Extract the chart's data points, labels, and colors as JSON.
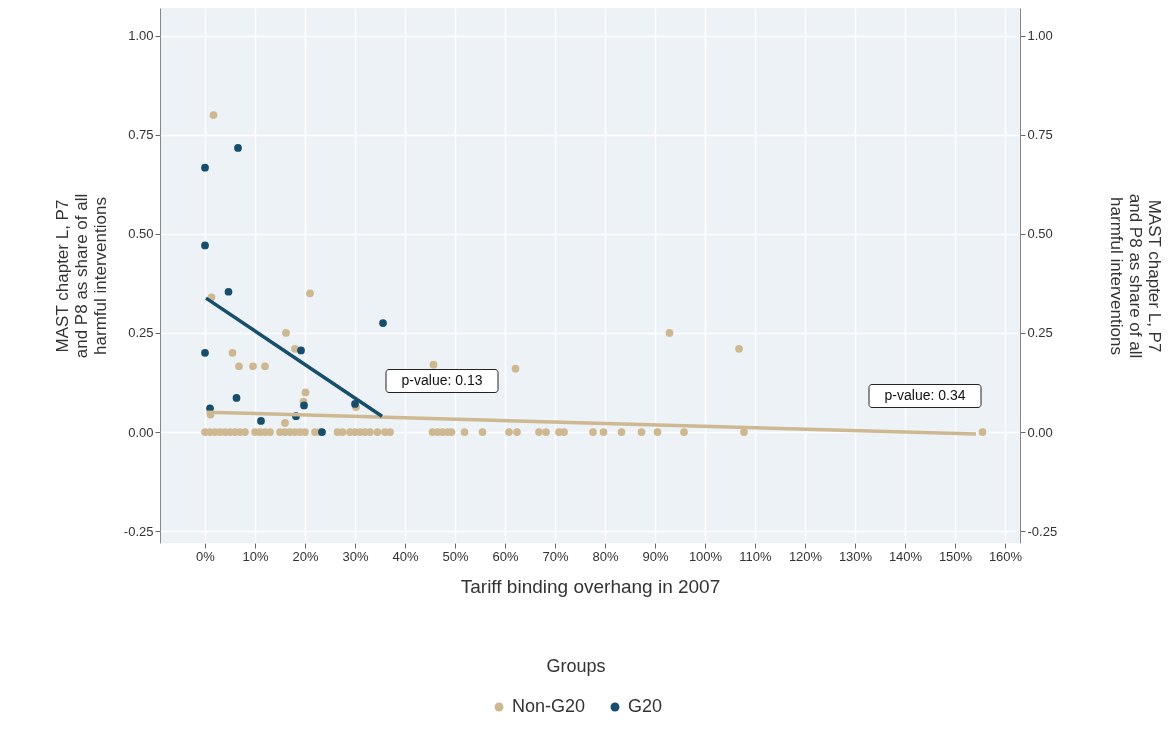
{
  "chart_data": {
    "type": "scatter",
    "xlabel": "Tariff binding overhang in 2007",
    "ylabel": "MAST chapter L, P7\nand P8 as share of all\nharmful interventions",
    "y2label": "MAST chapter L, P7\nand P8 as share of all\nharmful interventions",
    "legend_title": "Groups",
    "legend": "bottom",
    "grid": true,
    "xlim": [
      -9,
      163
    ],
    "ylim": [
      -0.28,
      1.07
    ],
    "y2lim": [
      -0.28,
      1.07
    ],
    "xticks": [
      {
        "value": 0,
        "label": "0%"
      },
      {
        "value": 10,
        "label": "10%"
      },
      {
        "value": 20,
        "label": "20%"
      },
      {
        "value": 30,
        "label": "30%"
      },
      {
        "value": 40,
        "label": "40%"
      },
      {
        "value": 50,
        "label": "50%"
      },
      {
        "value": 60,
        "label": "60%"
      },
      {
        "value": 70,
        "label": "70%"
      },
      {
        "value": 80,
        "label": "80%"
      },
      {
        "value": 90,
        "label": "90%"
      },
      {
        "value": 100,
        "label": "100%"
      },
      {
        "value": 110,
        "label": "110%"
      },
      {
        "value": 120,
        "label": "120%"
      },
      {
        "value": 130,
        "label": "130%"
      },
      {
        "value": 140,
        "label": "140%"
      },
      {
        "value": 150,
        "label": "150%"
      },
      {
        "value": 160,
        "label": "160%"
      }
    ],
    "yticks": [
      {
        "value": -0.25,
        "label": "-0.25"
      },
      {
        "value": 0,
        "label": "0.00"
      },
      {
        "value": 0.25,
        "label": "0.25"
      },
      {
        "value": 0.5,
        "label": "0.50"
      },
      {
        "value": 0.75,
        "label": "0.75"
      },
      {
        "value": 1,
        "label": "1.00"
      }
    ],
    "y2ticks": [
      {
        "value": -0.25,
        "label": "-0.25"
      },
      {
        "value": 0,
        "label": "0.00"
      },
      {
        "value": 0.25,
        "label": "0.25"
      },
      {
        "value": 0.5,
        "label": "0.50"
      },
      {
        "value": 0.75,
        "label": "0.75"
      },
      {
        "value": 1,
        "label": "1.00"
      }
    ],
    "series": [
      {
        "name": "Non-G20",
        "color": "#cdb891",
        "marker": "circle",
        "x": [
          1.7,
          1.3,
          21,
          16.2,
          5.5,
          18,
          6.8,
          9.6,
          12,
          20.1,
          19.7,
          30.2,
          16,
          1.1,
          45.7,
          62.1,
          92.9,
          106.8,
          0,
          1,
          2,
          3,
          4,
          5,
          6,
          7,
          8,
          10,
          11,
          12,
          13,
          15,
          16,
          17,
          18,
          19,
          20,
          22,
          23,
          26.5,
          27.5,
          29,
          30,
          31,
          32,
          33,
          34.5,
          36,
          37,
          45.5,
          46.5,
          47.5,
          48.5,
          49.3,
          51.9,
          55.5,
          60.8,
          62.4,
          66.8,
          68.2,
          70.8,
          71.8,
          77.6,
          79.7,
          83.3,
          87.3,
          90.5,
          95.8,
          107.8,
          155.5
        ],
        "values": [
          0.8,
          0.34,
          0.35,
          0.25,
          0.2,
          0.21,
          0.166,
          0.166,
          0.166,
          0.1,
          0.077,
          0.063,
          0.023,
          0.044,
          0.17,
          0.16,
          0.25,
          0.21,
          0,
          0,
          0,
          0,
          0,
          0,
          0,
          0,
          0,
          0,
          0,
          0,
          0,
          0,
          0,
          0,
          0,
          0,
          0,
          0,
          0,
          0,
          0,
          0,
          0,
          0,
          0,
          0,
          0,
          0,
          0,
          0,
          0,
          0,
          0,
          0,
          0,
          0,
          0,
          0,
          0,
          0,
          0,
          0,
          0,
          0,
          0,
          0,
          0,
          0,
          0,
          0
        ]
      },
      {
        "name": "G20",
        "color": "#164e6b",
        "marker": "circle",
        "x": [
          0,
          6.6,
          0,
          4.7,
          35.6,
          0,
          19.2,
          6.3,
          1,
          11.2,
          18.2,
          19.8,
          30,
          23.4
        ],
        "values": [
          0.667,
          0.717,
          0.471,
          0.354,
          0.275,
          0.2,
          0.206,
          0.086,
          0.06,
          0.028,
          0.04,
          0.067,
          0.071,
          0
        ]
      },
      {
        "color": "#cdb891",
        "type": "line",
        "x": [
          0.3,
          154.2
        ],
        "values": [
          0.05,
          -0.005
        ]
      },
      {
        "color": "#164e6b",
        "type": "line",
        "x": [
          0.2,
          35.4
        ],
        "values": [
          0.338,
          0.04
        ]
      }
    ],
    "annotations": [
      "p-value: 0.13",
      "p-value: 0.34"
    ]
  }
}
